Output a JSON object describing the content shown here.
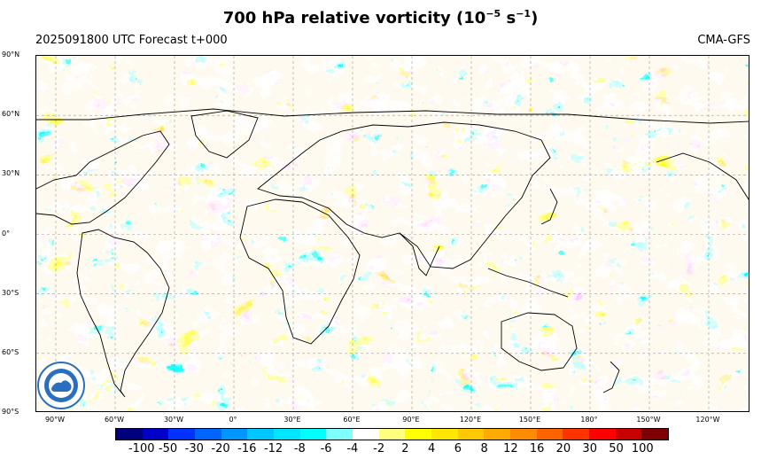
{
  "header": {
    "title_main": "700 hPa relative vorticity (10",
    "title_exp": "−5",
    "title_mid": " s",
    "title_exp2": "−1",
    "title_end": ")",
    "run_info": "2025091800 UTC Forecast t+000",
    "model": "CMA-GFS"
  },
  "map": {
    "lat_labels": [
      "90°N",
      "60°N",
      "30°N",
      "0°",
      "30°S",
      "60°S",
      "90°S"
    ],
    "lon_labels": [
      "90°W",
      "60°W",
      "30°W",
      "0°",
      "30°E",
      "60°E",
      "90°E",
      "120°E",
      "150°E",
      "180°",
      "150°W",
      "120°W"
    ],
    "projection": "equirectangular, central longitude ~110°E",
    "field": "relative vorticity 700 hPa"
  },
  "colorbar": {
    "labels": [
      "-100",
      "-50",
      "-30",
      "-20",
      "-16",
      "-12",
      "-8",
      "-6",
      "-4",
      "-2",
      "2",
      "4",
      "6",
      "8",
      "12",
      "16",
      "20",
      "30",
      "50",
      "100"
    ],
    "colors": [
      "#00007f",
      "#0000c8",
      "#0032ff",
      "#0064ff",
      "#0096ff",
      "#00c8ff",
      "#00e6ff",
      "#00ffff",
      "#80ffff",
      "#ffffff",
      "#ffff80",
      "#ffff00",
      "#ffe600",
      "#ffc800",
      "#ffaa00",
      "#ff8c00",
      "#ff6400",
      "#ff3200",
      "#ff0000",
      "#c80000",
      "#7f0000"
    ]
  },
  "logo": {
    "icon": "cma-logo-icon"
  }
}
